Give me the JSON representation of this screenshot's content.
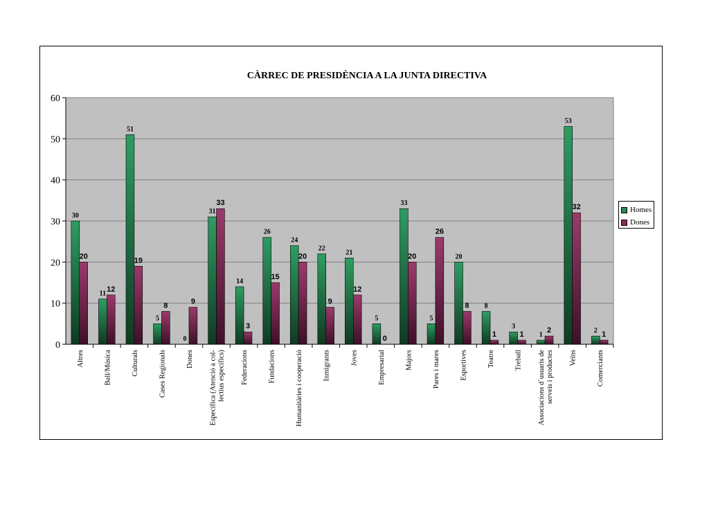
{
  "chart_data": {
    "type": "bar",
    "title": "CÀRREC DE PRESIDÈNCIA A LA JUNTA DIRECTIVA",
    "xlabel": "",
    "ylabel": "",
    "ylim": [
      0,
      60
    ],
    "yticks": [
      0,
      10,
      20,
      30,
      40,
      50,
      60
    ],
    "grid": true,
    "legend_position": "right",
    "categories": [
      [
        "Altres"
      ],
      [
        "Ball/Música"
      ],
      [
        "Culturals"
      ],
      [
        "Cases Regionals"
      ],
      [
        "Dones"
      ],
      [
        "Específica (Atenció a col-",
        "lectius específics)"
      ],
      [
        "Federacions"
      ],
      [
        "Fundacions"
      ],
      [
        "Humanitàries i cooperació"
      ],
      [
        "Inmigrants"
      ],
      [
        "Joves"
      ],
      [
        "Empresarial"
      ],
      [
        "Majors"
      ],
      [
        "Pares i mares"
      ],
      [
        "Esportives"
      ],
      [
        "Teatre"
      ],
      [
        "Treball"
      ],
      [
        "Associacions d´usuaris de",
        "serveis i productes"
      ],
      [
        "Veïns"
      ],
      [
        "Comerciants"
      ]
    ],
    "series": [
      {
        "name": "Homes",
        "color": "#2e8b57",
        "values": [
          30,
          11,
          51,
          5,
          0,
          31,
          14,
          26,
          24,
          22,
          21,
          5,
          33,
          5,
          20,
          8,
          3,
          1,
          53,
          2
        ]
      },
      {
        "name": "Dones",
        "color": "#8b2a5c",
        "values": [
          20,
          12,
          19,
          8,
          9,
          33,
          3,
          15,
          20,
          9,
          12,
          0,
          20,
          26,
          8,
          1,
          1,
          2,
          32,
          1
        ]
      }
    ]
  }
}
